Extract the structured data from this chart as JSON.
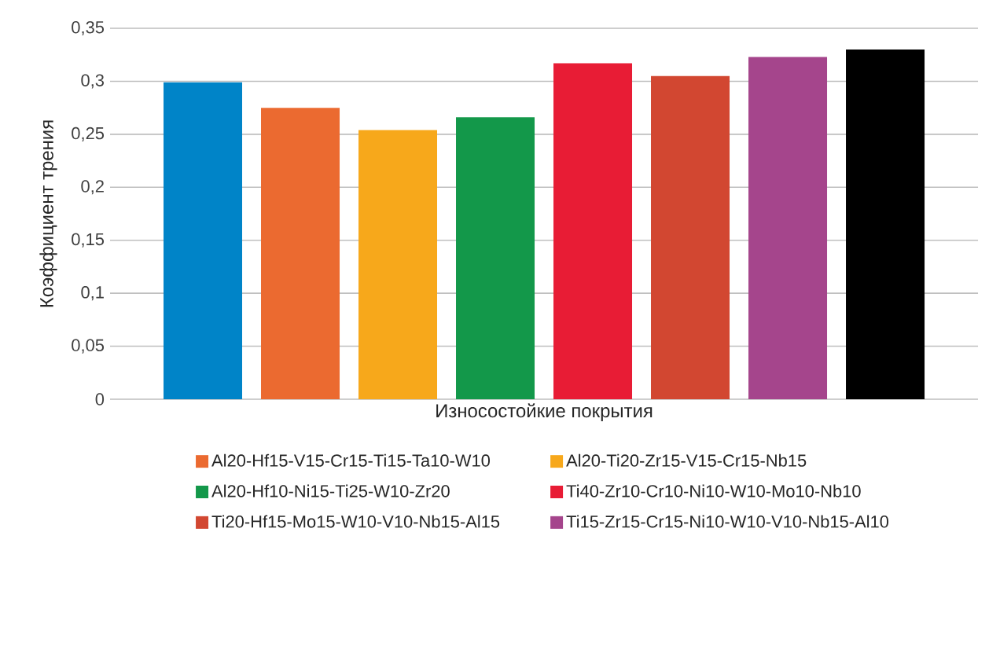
{
  "chart_data": {
    "type": "bar",
    "xlabel": "Износостойкие покрытия",
    "ylabel": "Коэффициент трения",
    "categories": [
      null
    ],
    "ylim": [
      0,
      0.35
    ],
    "yticks": [
      0,
      {
        "value": 0.05,
        "label": "0,05"
      },
      {
        "value": 0.1,
        "label": "0,1"
      },
      {
        "value": 0.15,
        "label": "0,15"
      },
      {
        "value": 0.2,
        "label": "0,2"
      },
      {
        "value": 0.25,
        "label": "0,25"
      },
      {
        "value": 0.3,
        "label": "0,3"
      },
      {
        "value": 0.35,
        "label": "0,35"
      }
    ],
    "grid": "y",
    "legend": "bottom",
    "series": [
      {
        "color": "#0084c8",
        "values": [
          0.299
        ]
      },
      {
        "name": "Al20-Hf15-V15-Cr15-Ti15-Ta10-W10",
        "color": "#eb6a30",
        "values": [
          0.275
        ]
      },
      {
        "name": "Al20-Ti20-Zr15-V15-Cr15-Nb15",
        "color": "#f7a81b",
        "values": [
          0.254
        ]
      },
      {
        "name": "Al20-Hf10-Ni15-Ti25-W10-Zr20",
        "color": "#13984a",
        "values": [
          0.266
        ]
      },
      {
        "name": "Ti40-Zr10-Cr10-Ni10-W10-Mo10-Nb10",
        "color": "#e81c35",
        "values": [
          0.317
        ]
      },
      {
        "name": "Ti20-Hf15-Mo15-W10-V10-Nb15-Al15",
        "color": "#d24731",
        "values": [
          0.305
        ]
      },
      {
        "name": "Ti15-Zr15-Cr15-Ni10-W10-V10-Nb15-Al10",
        "color": "#a5458c",
        "values": [
          0.323
        ]
      },
      {
        "color": "#000000",
        "values": [
          0.33
        ]
      }
    ]
  }
}
